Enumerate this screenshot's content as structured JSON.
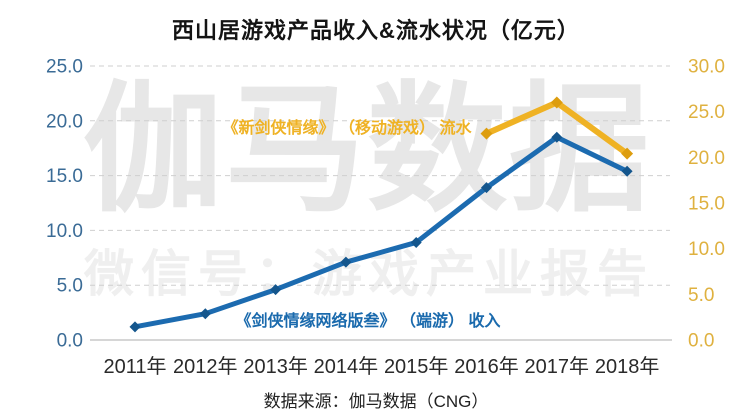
{
  "title": "西山居游戏产品收入&流水状况（亿元）",
  "source_note": "数据来源：伽马数据（CNG）",
  "watermark": {
    "brand": "伽马数据",
    "wechat": "微信号：游戏产业报告"
  },
  "chart_data": {
    "type": "line",
    "title": "西山居游戏产品收入&流水状况（亿元）",
    "unit": "亿元",
    "categories": [
      "2011年",
      "2012年",
      "2013年",
      "2014年",
      "2015年",
      "2016年",
      "2017年",
      "2018年"
    ],
    "series": [
      {
        "name": "《剑侠情缘网络版叁》 （端游） 收入",
        "axis": "left",
        "color": "#1c6bb0",
        "marker_color": "#14568d",
        "values": [
          1.2,
          2.4,
          4.6,
          7.1,
          8.9,
          13.9,
          18.5,
          15.4
        ]
      },
      {
        "name": "《新剑侠情缘》 （移动游戏） 流水",
        "axis": "right",
        "color": "#efb224",
        "marker_color": "#dd9d0e",
        "values": [
          null,
          null,
          null,
          null,
          null,
          22.6,
          26.0,
          20.4
        ]
      }
    ],
    "left_axis": {
      "range": [
        0,
        25
      ],
      "step": 5,
      "tick_labels": [
        "25.0",
        "20.0",
        "15.0",
        "10.0",
        "5.0",
        "0.0"
      ],
      "color": "#3a6b96"
    },
    "right_axis": {
      "range": [
        0,
        30
      ],
      "step": 5,
      "tick_labels": [
        "30.0",
        "25.0",
        "20.0",
        "15.0",
        "10.0",
        "5.0",
        "0.0"
      ],
      "color": "#dfb13f"
    },
    "x_label_color": "#2a2a2a",
    "grid": {
      "horizontal": "dashed",
      "color": "#cfcfcf",
      "baseline_color": "#c9c9c9"
    },
    "legend_position": "inline-labels"
  }
}
